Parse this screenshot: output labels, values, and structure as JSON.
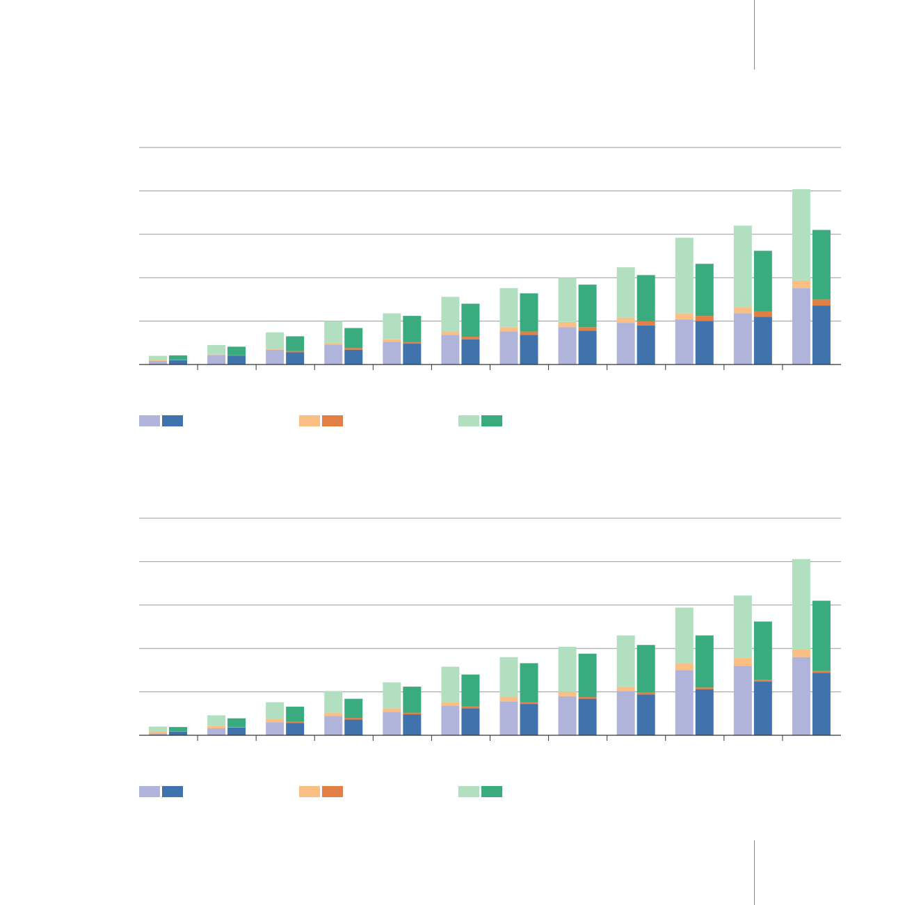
{
  "chart_data": [
    {
      "type": "bar",
      "stacked": true,
      "grouped": true,
      "title": "",
      "xlabel": "",
      "ylabel": "",
      "ylim": [
        0,
        250
      ],
      "gridlines": [
        0,
        50,
        100,
        150,
        200,
        250
      ],
      "categories": [
        "",
        "",
        "",
        "",
        "",
        "",
        "",
        "",
        "",
        "",
        "",
        ""
      ],
      "groups": [
        {
          "name": "",
          "series": [
            {
              "name": "",
              "color": "#b0b4da",
              "values": [
                4,
                11,
                17,
                23,
                26,
                34,
                38,
                43,
                48,
                52,
                59,
                88
              ]
            },
            {
              "name": "",
              "color": "#f9bf85",
              "values": [
                1,
                0.5,
                1,
                2,
                3,
                4,
                5,
                6,
                6,
                7,
                7,
                9
              ]
            },
            {
              "name": "",
              "color": "#b3dfc1",
              "values": [
                5,
                11,
                19,
                25,
                30,
                40,
                45,
                51,
                58,
                87,
                94,
                105
              ]
            }
          ]
        },
        {
          "name": "",
          "series": [
            {
              "name": "",
              "color": "#4072ab",
              "values": [
                5,
                10,
                14,
                17,
                24,
                29,
                34,
                39,
                45,
                50,
                55,
                68
              ]
            },
            {
              "name": "",
              "color": "#e27f45",
              "values": [
                0.5,
                0.5,
                1.5,
                2,
                2,
                3,
                4,
                4,
                5,
                6,
                6,
                7
              ]
            },
            {
              "name": "",
              "color": "#3aaa7f",
              "values": [
                5,
                10,
                17,
                23,
                30,
                38,
                44,
                49,
                53,
                60,
                70,
                80
              ]
            }
          ]
        }
      ],
      "legend": {
        "placement": "bottom-left",
        "entries": [
          {
            "label": "",
            "colors": [
              "#b0b4da",
              "#4072ab"
            ]
          },
          {
            "label": "",
            "colors": [
              "#f9bf85",
              "#e27f45"
            ]
          },
          {
            "label": "",
            "colors": [
              "#b3dfc1",
              "#3aaa7f"
            ]
          }
        ]
      }
    },
    {
      "type": "bar",
      "stacked": true,
      "grouped": true,
      "title": "",
      "xlabel": "",
      "ylabel": "",
      "ylim": [
        0,
        250
      ],
      "gridlines": [
        0,
        50,
        100,
        150,
        200,
        250
      ],
      "categories": [
        "",
        "",
        "",
        "",
        "",
        "",
        "",
        "",
        "",
        "",
        "",
        ""
      ],
      "groups": [
        {
          "name": "",
          "series": [
            {
              "name": "",
              "color": "#b0b4da",
              "values": [
                2,
                8,
                15,
                22,
                27,
                34,
                39,
                45,
                51,
                75,
                80,
                90
              ]
            },
            {
              "name": "",
              "color": "#f9bf85",
              "values": [
                2,
                3,
                4,
                4,
                4,
                4,
                5,
                5,
                5,
                8,
                9,
                9
              ]
            },
            {
              "name": "",
              "color": "#b3dfc1",
              "values": [
                6,
                12,
                19,
                25,
                30,
                41,
                46,
                52,
                59,
                64,
                72,
                104
              ]
            }
          ]
        },
        {
          "name": "",
          "series": [
            {
              "name": "",
              "color": "#4072ab",
              "values": [
                4,
                9,
                14,
                18,
                24,
                31,
                36,
                42,
                47,
                53,
                62,
                72
              ]
            },
            {
              "name": "",
              "color": "#e27f45",
              "values": [
                0.5,
                0.5,
                2,
                2,
                2,
                2,
                2,
                2,
                2,
                2,
                2,
                2
              ]
            },
            {
              "name": "",
              "color": "#3aaa7f",
              "values": [
                5,
                10,
                17,
                22,
                30,
                37,
                45,
                50,
                55,
                60,
                67,
                81
              ]
            }
          ]
        }
      ],
      "legend": {
        "placement": "bottom-left",
        "entries": [
          {
            "label": "",
            "colors": [
              "#b0b4da",
              "#4072ab"
            ]
          },
          {
            "label": "",
            "colors": [
              "#f9bf85",
              "#e27f45"
            ]
          },
          {
            "label": "",
            "colors": [
              "#b3dfc1",
              "#3aaa7f"
            ]
          }
        ]
      }
    }
  ]
}
